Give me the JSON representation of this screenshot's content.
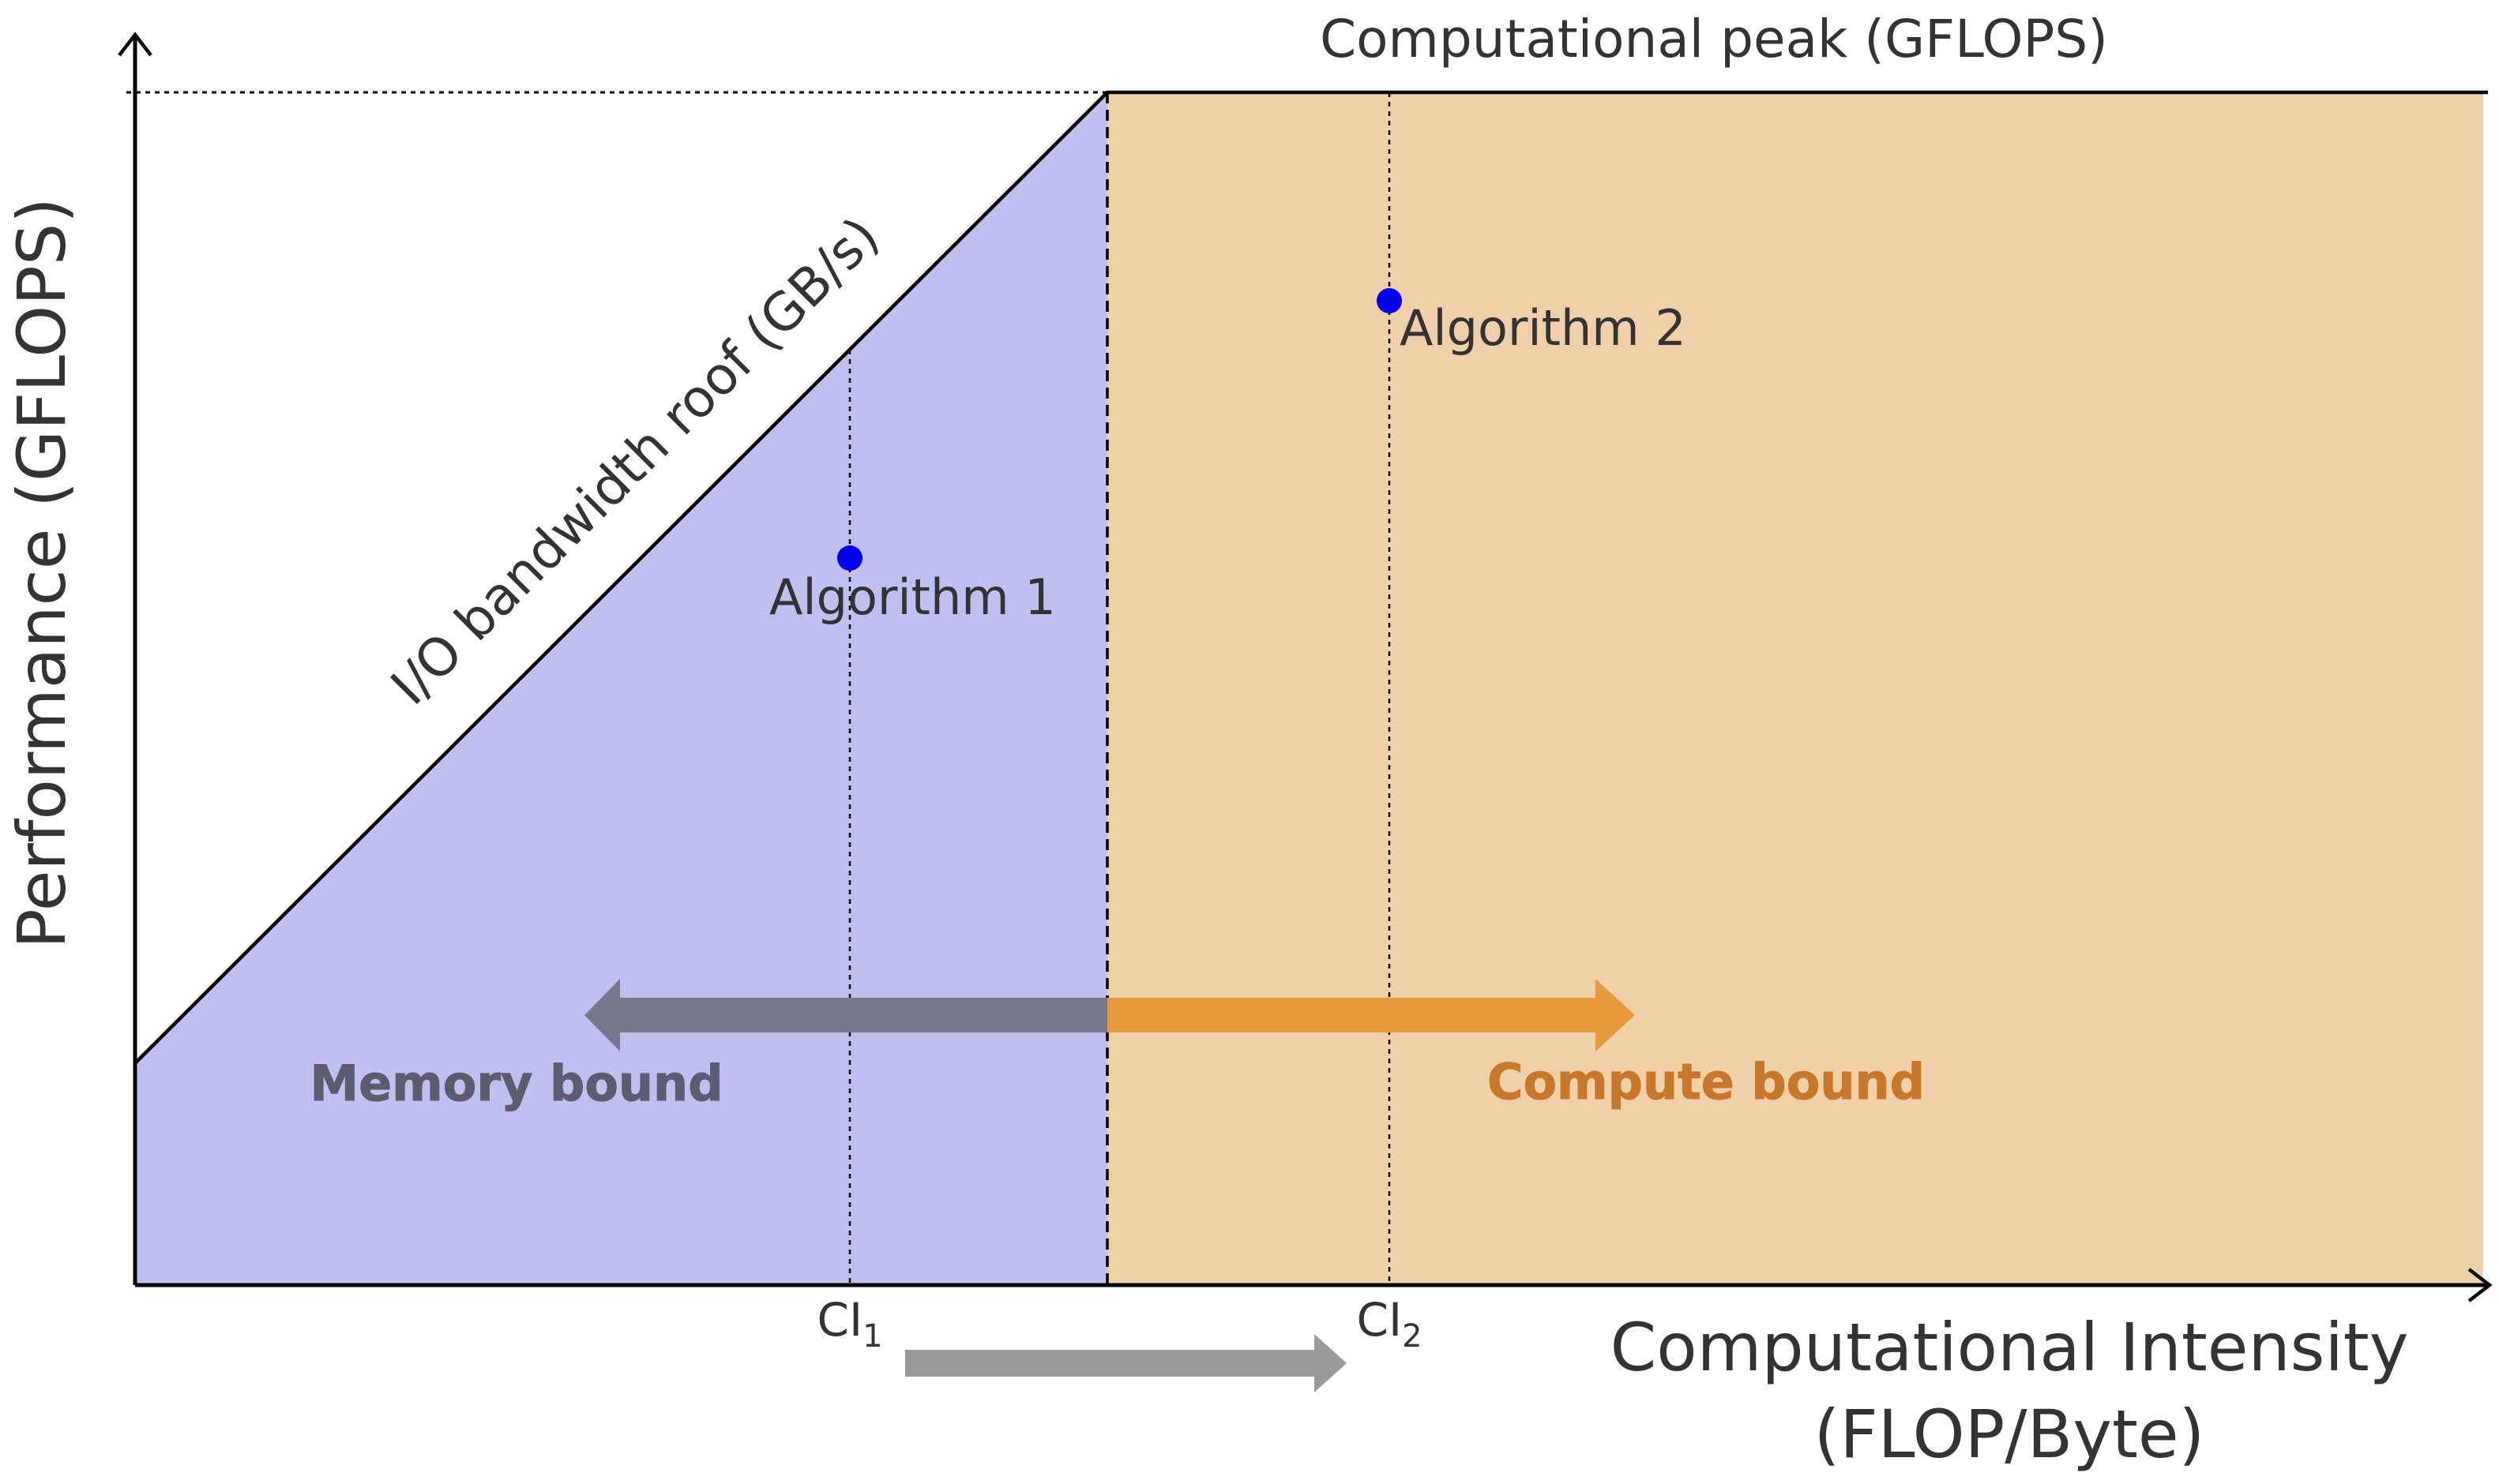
{
  "diagram": {
    "y_axis_label": "Performance (GFLOPS)",
    "x_axis_label_line1": "Computational Intensity",
    "x_axis_label_line2": "(FLOP/Byte)",
    "peak_label": "Computational peak (GFLOPS)",
    "roof_label": "I/O bandwidth roof (GB/s)",
    "algorithm1_label": "Algorithm 1",
    "algorithm2_label": "Algorithm 2",
    "memory_bound_label": "Memory bound",
    "compute_bound_label": "Compute bound",
    "ci1_base": "CI",
    "ci1_sub": "1",
    "ci2_base": "CI",
    "ci2_sub": "2",
    "colors": {
      "memory_region": "#bfbff0",
      "compute_region": "#f0d0a8",
      "algorithm_point": "#0000ee",
      "memory_arrow": "#77778c",
      "compute_arrow": "#e69a3c",
      "memory_text": "#5c5c6e",
      "compute_text": "#c8782a",
      "progress_arrow": "#9a9a9a",
      "text": "#333333"
    }
  }
}
